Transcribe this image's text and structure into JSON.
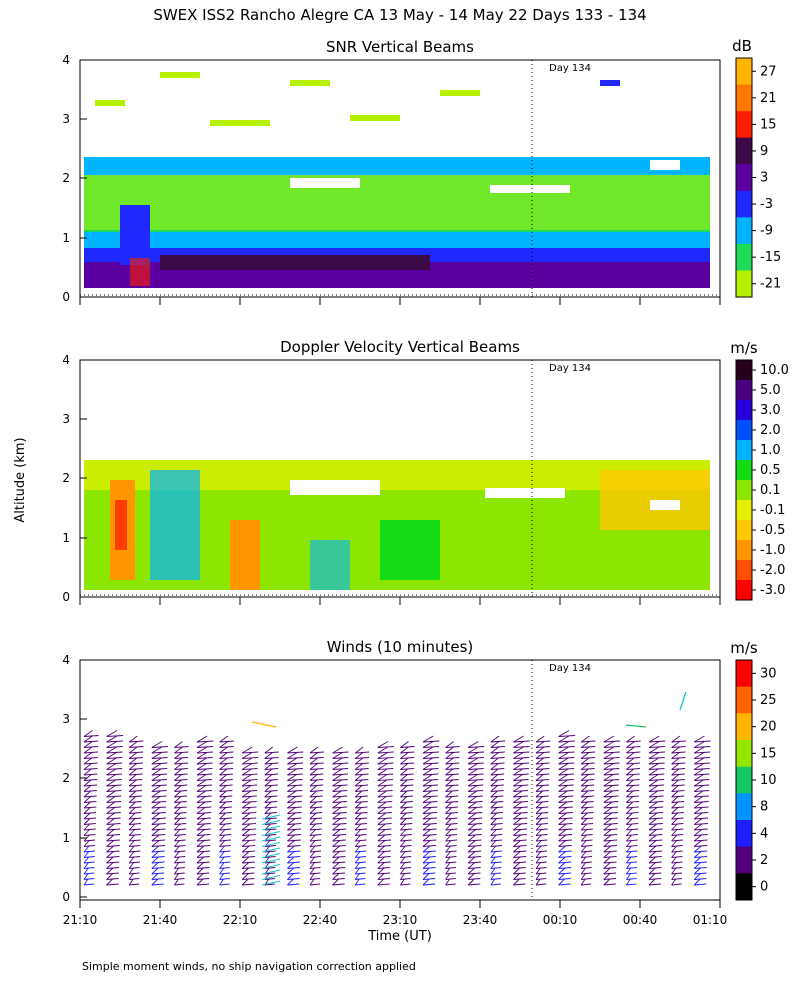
{
  "figure_title": "SWEX ISS2 Rancho Alegre CA  13 May - 14 May 22 Days 133 - 134",
  "footnote": "Simple moment winds, no ship navigation correction applied",
  "chart_data": [
    {
      "type": "heatmap",
      "title": "SNR Vertical Beams",
      "xlabel": "",
      "ylabel": "Altitude (km)",
      "ylim": [
        0,
        4
      ],
      "y_ticks": [
        "0",
        "1",
        "2",
        "3",
        "4"
      ],
      "day_marker": {
        "label": "Day 134",
        "time": "24:00"
      },
      "colorbar": {
        "unit": "dB",
        "tick_labels": [
          "27",
          "21",
          "15",
          "9",
          "3",
          "-3",
          "-9",
          "-15",
          "-21"
        ],
        "colors": [
          "#ffb400",
          "#ff7800",
          "#ff1e00",
          "#3c0a46",
          "#5a00a0",
          "#1e28ff",
          "#00b4ff",
          "#1edc5a",
          "#b4f000"
        ]
      }
    },
    {
      "type": "heatmap",
      "title": "Doppler Velocity Vertical Beams",
      "xlabel": "",
      "ylabel": "Altitude (km)",
      "ylim": [
        0,
        4
      ],
      "y_ticks": [
        "0",
        "1",
        "2",
        "3",
        "4"
      ],
      "day_marker": {
        "label": "Day 134",
        "time": "24:00"
      },
      "colorbar": {
        "unit": "m/s",
        "tick_labels": [
          "10.0",
          "5.0",
          "3.0",
          "2.0",
          "1.0",
          "0.5",
          "0.1",
          "-0.1",
          "-0.5",
          "-1.0",
          "-2.0",
          "-3.0"
        ],
        "colors": [
          "#28001e",
          "#4b0082",
          "#2800dc",
          "#0050ff",
          "#00b4ff",
          "#14dc14",
          "#8ce600",
          "#e6f000",
          "#ffc800",
          "#ff9600",
          "#ff5000",
          "#ff0000"
        ]
      }
    },
    {
      "type": "scatter",
      "title": "Winds (10 minutes)",
      "xlabel": "Time (UT)",
      "ylabel": "Altitude (km)",
      "ylim": [
        0,
        4
      ],
      "y_ticks": [
        "0",
        "1",
        "2",
        "3",
        "4"
      ],
      "x_ticks": [
        "21:10",
        "21:40",
        "22:10",
        "22:40",
        "23:10",
        "23:40",
        "00:10",
        "00:40",
        "01:10"
      ],
      "day_marker": {
        "label": "Day 134",
        "time": "24:00"
      },
      "colorbar": {
        "unit": "m/s",
        "tick_labels": [
          "30",
          "25",
          "20",
          "15",
          "10",
          "8",
          "4",
          "2",
          "0"
        ],
        "colors": [
          "#ff0000",
          "#ff6400",
          "#ffb400",
          "#96e600",
          "#14c864",
          "#0096ff",
          "#1e1eff",
          "#50007a",
          "#000000"
        ]
      }
    }
  ]
}
